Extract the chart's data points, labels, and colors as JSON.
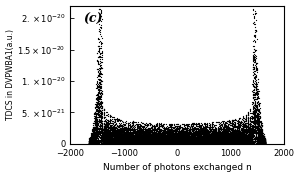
{
  "title": "",
  "panel_label": "(c)",
  "xlabel": "Number of photons exchanged n",
  "ylabel": "TDCS in DVPWBA1(a.u.)",
  "xlim": [
    -2000,
    2000
  ],
  "ylim": [
    -5e-23,
    2.2e-20
  ],
  "yticks": [
    0,
    5e-21,
    1e-20,
    1.5e-20,
    2e-20
  ],
  "xticks": [
    -2000,
    -1000,
    0,
    1000,
    2000
  ],
  "n_max": 1450,
  "amplitude": 2e-20,
  "dot_color": "#000000",
  "dot_size": 0.8,
  "background_color": "#ffffff"
}
